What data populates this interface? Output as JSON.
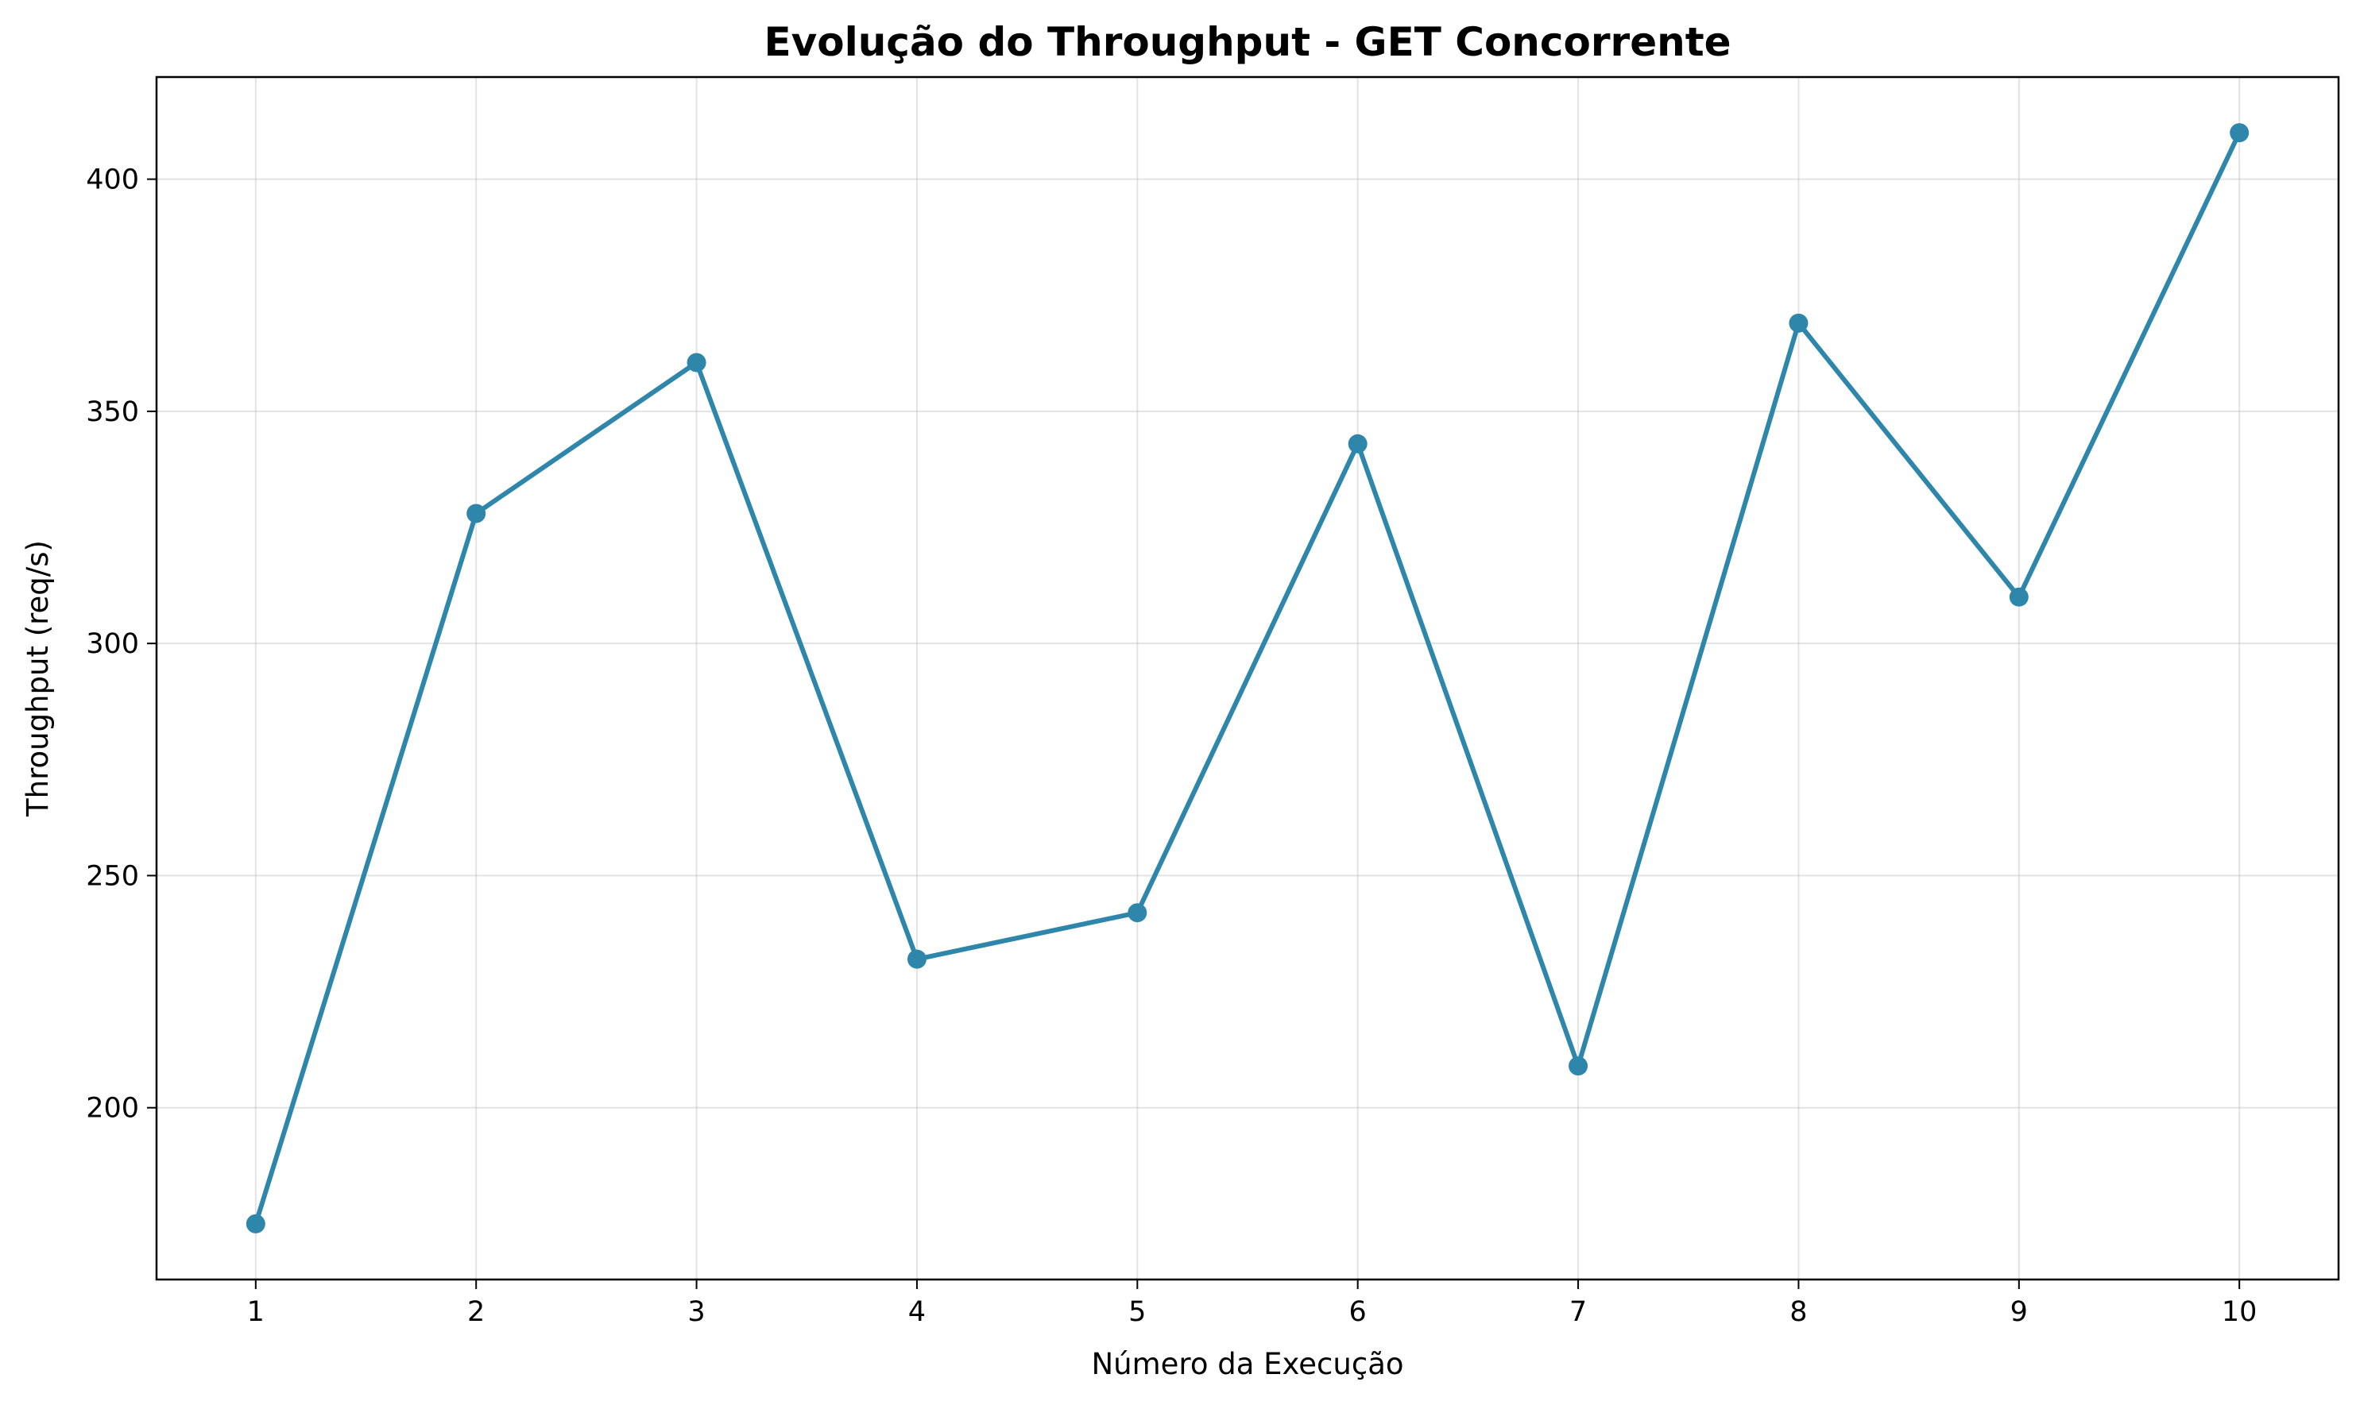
{
  "chart_data": {
    "type": "line",
    "title": "Evolução do Throughput - GET Concorrente",
    "xlabel": "Número da Execução",
    "ylabel": "Throughput (req/s)",
    "x": [
      1,
      2,
      3,
      4,
      5,
      6,
      7,
      8,
      9,
      10
    ],
    "x_tick_labels": [
      "1",
      "2",
      "3",
      "4",
      "5",
      "6",
      "7",
      "8",
      "9",
      "10"
    ],
    "y_ticks": [
      200,
      250,
      300,
      350,
      400
    ],
    "y_tick_labels": [
      "200",
      "250",
      "300",
      "350",
      "400"
    ],
    "xlim": [
      0.55,
      10.45
    ],
    "ylim": [
      163,
      422
    ],
    "grid": true,
    "series": [
      {
        "values": [
          175,
          328,
          360.5,
          232,
          242,
          343,
          209,
          369,
          310,
          410
        ],
        "color": "#2e86ab",
        "marker": "circle"
      }
    ]
  }
}
